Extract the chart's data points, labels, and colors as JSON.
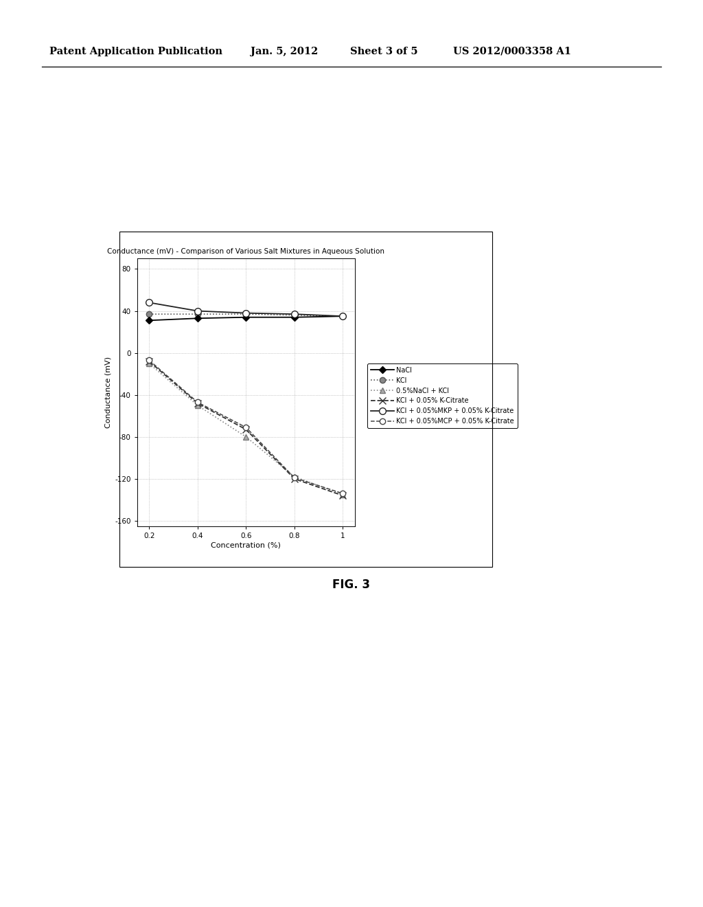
{
  "title": "Conductance (mV) - Comparison of Various Salt Mixtures in Aqueous Solution",
  "xlabel": "Concentration (%)",
  "ylabel": "Conductance (mV)",
  "xlim": [
    0.15,
    1.05
  ],
  "ylim": [
    -165,
    90
  ],
  "xticks": [
    0.2,
    0.4,
    0.6,
    0.8,
    1.0
  ],
  "yticks": [
    -160,
    -120,
    -80,
    -40,
    0,
    40,
    80
  ],
  "series": [
    {
      "label": "NaCl",
      "x": [
        0.2,
        0.4,
        0.6,
        0.8,
        1.0
      ],
      "y": [
        31,
        33,
        34,
        34,
        35
      ],
      "color": "#000000",
      "linestyle": "-",
      "marker": "D",
      "markersize": 5,
      "linewidth": 1.3,
      "zorder": 5,
      "markerfacecolor": "#000000",
      "markeredgecolor": "#000000"
    },
    {
      "label": "KCl",
      "x": [
        0.2,
        0.4,
        0.6,
        0.8,
        1.0
      ],
      "y": [
        37,
        37,
        37,
        36,
        35
      ],
      "color": "#555555",
      "linestyle": ":",
      "marker": "o",
      "markersize": 6,
      "linewidth": 1.2,
      "zorder": 4,
      "markerfacecolor": "#888888",
      "markeredgecolor": "#555555"
    },
    {
      "label": "0.5%NaCl + KCl",
      "x": [
        0.2,
        0.4,
        0.6,
        0.8,
        1.0
      ],
      "y": [
        -10,
        -50,
        -80,
        -118,
        -135
      ],
      "color": "#888888",
      "linestyle": ":",
      "marker": "^",
      "markersize": 6,
      "linewidth": 1.2,
      "zorder": 3,
      "markerfacecolor": "#aaaaaa",
      "markeredgecolor": "#777777"
    },
    {
      "label": "KCl + 0.05% K-Citrate",
      "x": [
        0.2,
        0.4,
        0.6,
        0.8,
        1.0
      ],
      "y": [
        -8,
        -48,
        -73,
        -120,
        -136
      ],
      "color": "#333333",
      "linestyle": "--",
      "marker": "x",
      "markersize": 7,
      "linewidth": 1.3,
      "zorder": 3,
      "markerfacecolor": "#333333",
      "markeredgecolor": "#333333"
    },
    {
      "label": "KCl + 0.05%MKP + 0.05% K-Citrate",
      "x": [
        0.2,
        0.4,
        0.6,
        0.8,
        1.0
      ],
      "y": [
        48,
        40,
        38,
        37,
        35
      ],
      "color": "#222222",
      "linestyle": "-",
      "marker": "o",
      "markersize": 7,
      "linewidth": 1.3,
      "zorder": 5,
      "markerfacecolor": "white",
      "markeredgecolor": "#222222"
    },
    {
      "label": "KCl + 0.05%MCP + 0.05% K-Citrate",
      "x": [
        0.2,
        0.4,
        0.6,
        0.8,
        1.0
      ],
      "y": [
        -7,
        -47,
        -71,
        -119,
        -134
      ],
      "color": "#444444",
      "linestyle": "--",
      "marker": "o",
      "markersize": 6,
      "linewidth": 1.1,
      "zorder": 3,
      "markerfacecolor": "white",
      "markeredgecolor": "#444444"
    }
  ],
  "fig_width": 10.24,
  "fig_height": 13.2,
  "background_color": "#ffffff",
  "header_text": "Patent Application Publication",
  "header_date": "Jan. 5, 2012",
  "header_sheet": "Sheet 3 of 5",
  "header_patent": "US 2012/0003358 A1",
  "fig_label": "FIG. 3"
}
